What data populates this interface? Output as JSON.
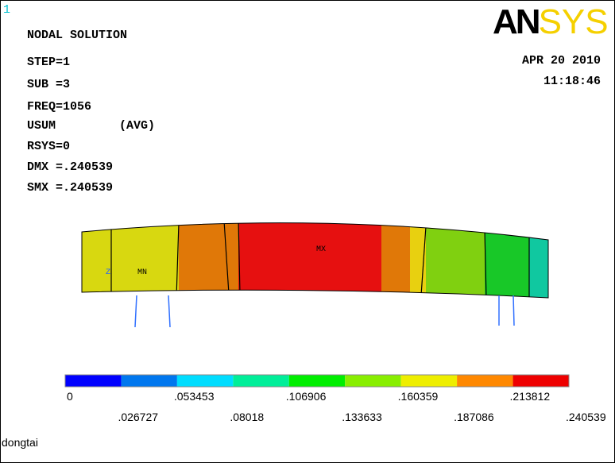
{
  "window_number": "1",
  "info": [
    "NODAL SOLUTION",
    "STEP=1",
    "SUB =3",
    "FREQ=1056"
  ],
  "usum": {
    "label": "USUM",
    "avg": "(AVG)"
  },
  "info2": [
    "RSYS=0",
    "DMX =.240539",
    "SMX =.240539"
  ],
  "logo": {
    "dark": "AN",
    "light": "SYS"
  },
  "date": "APR 20 2010",
  "time": "11:18:46",
  "markers": {
    "min": "MN",
    "max": "MX",
    "axis": "Z"
  },
  "legend": {
    "colors": [
      "#0000ff",
      "#0077ee",
      "#00ddff",
      "#00ee99",
      "#00ee00",
      "#88ee00",
      "#eeee00",
      "#ff8800",
      "#ee0000"
    ],
    "labels": [
      "0",
      ".026727",
      ".053453",
      ".08018",
      ".106906",
      ".133633",
      ".160359",
      ".187086",
      ".213812",
      ".240539"
    ]
  },
  "footer": "dongtai"
}
